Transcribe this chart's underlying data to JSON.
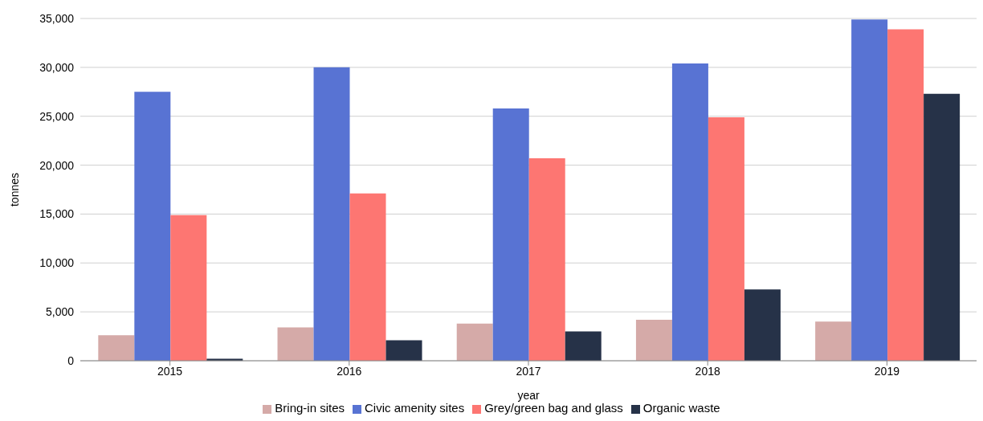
{
  "chart_data": {
    "type": "bar",
    "xlabel": "year",
    "ylabel": "tonnes",
    "categories": [
      "2015",
      "2016",
      "2017",
      "2018",
      "2019"
    ],
    "series": [
      {
        "name": "Bring-in sites",
        "color": "#d5aaa8",
        "values": [
          2600,
          3400,
          3800,
          4200,
          4000
        ]
      },
      {
        "name": "Civic amenity sites",
        "color": "#5873d3",
        "values": [
          27500,
          30000,
          25800,
          30400,
          34900
        ]
      },
      {
        "name": "Grey/green bag and glass",
        "color": "#fd7672",
        "values": [
          14900,
          17100,
          20700,
          24900,
          33900
        ]
      },
      {
        "name": "Organic waste",
        "color": "#263248",
        "values": [
          200,
          2100,
          3000,
          7300,
          27300
        ]
      }
    ],
    "ylim": [
      0,
      35000
    ],
    "yticks": [
      0,
      {
        "value": 5000,
        "label": "5,000"
      },
      {
        "value": 10000,
        "label": "10,000"
      },
      {
        "value": 15000,
        "label": "15,000"
      },
      {
        "value": 20000,
        "label": "20,000"
      },
      {
        "value": 25000,
        "label": "25,000"
      },
      {
        "value": 30000,
        "label": "30,000"
      },
      {
        "value": 35000,
        "label": "35,000"
      }
    ],
    "grid": "y",
    "legend": "bottom"
  }
}
